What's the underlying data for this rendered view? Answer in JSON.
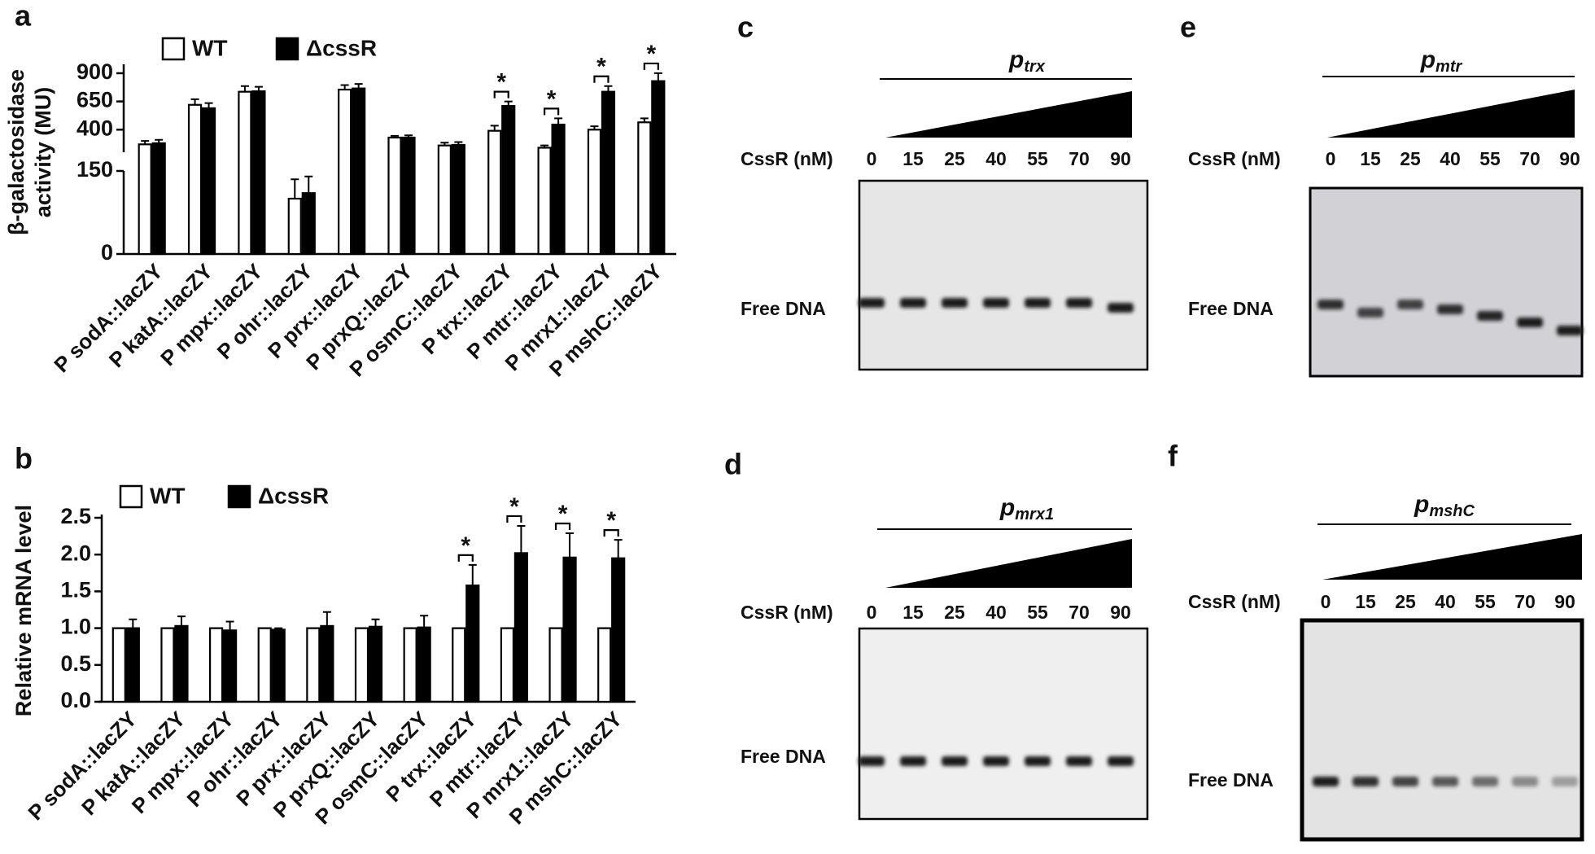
{
  "chart_data": [
    {
      "panel": "a",
      "type": "bar",
      "y_label": [
        "β-galactosidase",
        "activity (MU)"
      ],
      "categories": [
        "P sodA::lacZY",
        "P katA::lacZY",
        "P mpx::lacZY",
        "P ohr::lacZY",
        "P prx::lacZY",
        "P prxQ::lacZY",
        "P osmC::lacZY",
        "P trx::lacZY",
        "P mtr::lacZY",
        "P mrx1::lacZY",
        "P mshC::lacZY"
      ],
      "series": [
        {
          "name": "WT",
          "color": "#ffffff",
          "values": [
            270,
            620,
            736,
            100,
            755,
            330,
            260,
            390,
            240,
            400,
            465
          ],
          "errors": [
            30,
            50,
            50,
            35,
            40,
            15,
            25,
            45,
            20,
            30,
            35
          ]
        },
        {
          "name": "ΔcssR",
          "color": "#000000",
          "values": [
            280,
            590,
            740,
            110,
            765,
            330,
            265,
            610,
            445,
            736,
            830
          ],
          "errors": [
            30,
            45,
            40,
            30,
            40,
            20,
            25,
            40,
            55,
            50,
            70
          ]
        }
      ],
      "ylim": [
        0,
        950
      ],
      "axis_break": [
        150,
        200
      ],
      "yticks": [
        0,
        150,
        400,
        650,
        900
      ],
      "significance": [
        null,
        null,
        null,
        null,
        null,
        null,
        null,
        "*",
        "*",
        "*",
        "*"
      ]
    },
    {
      "panel": "b",
      "type": "bar",
      "y_label": [
        "Relative  mRNA level"
      ],
      "categories": [
        "P sodA::lacZY",
        "P katA::lacZY",
        "P mpx::lacZY",
        "P ohr::lacZY",
        "P prx::lacZY",
        "P prxQ::lacZY",
        "P osmC::lacZY",
        "P trx::lacZY",
        "P mtr::lacZY",
        "P mrx1::lacZY",
        "P mshC::lacZY"
      ],
      "series": [
        {
          "name": "WT",
          "color": "#ffffff",
          "values": [
            1,
            1,
            1,
            1,
            1,
            1,
            1,
            1,
            1,
            1,
            1
          ],
          "errors": [
            0,
            0,
            0,
            0,
            0,
            0,
            0,
            0,
            0,
            0,
            0
          ]
        },
        {
          "name": "ΔcssR",
          "color": "#000000",
          "values": [
            1.0,
            1.03,
            0.97,
            0.98,
            1.03,
            1.02,
            1.01,
            1.58,
            2.02,
            1.96,
            1.95
          ],
          "errors": [
            0.12,
            0.13,
            0.12,
            0.02,
            0.19,
            0.1,
            0.16,
            0.28,
            0.37,
            0.33,
            0.25
          ]
        }
      ],
      "ylim": [
        0,
        2.5
      ],
      "yticks": [
        {
          "value": 0,
          "label": "0.0"
        },
        0.5,
        {
          "value": 1,
          "label": "1.0"
        },
        1.5,
        {
          "value": 2,
          "label": "2.0"
        },
        2.5
      ],
      "significance": [
        null,
        null,
        null,
        null,
        null,
        null,
        null,
        "*",
        "*",
        "*",
        "*"
      ]
    }
  ],
  "gels": [
    {
      "panel": "c",
      "promoter": "p",
      "promoter_sub": "trx",
      "concentration_label": "CssR (nM)",
      "concentrations": [
        0,
        15,
        25,
        40,
        55,
        70,
        90
      ],
      "band_label": "Free DNA"
    },
    {
      "panel": "d",
      "promoter": "p",
      "promoter_sub": "mrx1",
      "concentration_label": "CssR (nM)",
      "concentrations": [
        0,
        15,
        25,
        40,
        55,
        70,
        90
      ],
      "band_label": "Free DNA"
    },
    {
      "panel": "e",
      "promoter": "p",
      "promoter_sub": "mtr",
      "concentration_label": "CssR (nM)",
      "concentrations": [
        0,
        15,
        25,
        40,
        55,
        70,
        90
      ],
      "band_label": "Free DNA"
    },
    {
      "panel": "f",
      "promoter": "p",
      "promoter_sub": "mshC",
      "concentration_label": "CssR (nM)",
      "concentrations": [
        0,
        15,
        25,
        40,
        55,
        70,
        90
      ],
      "band_label": "Free DNA"
    }
  ]
}
